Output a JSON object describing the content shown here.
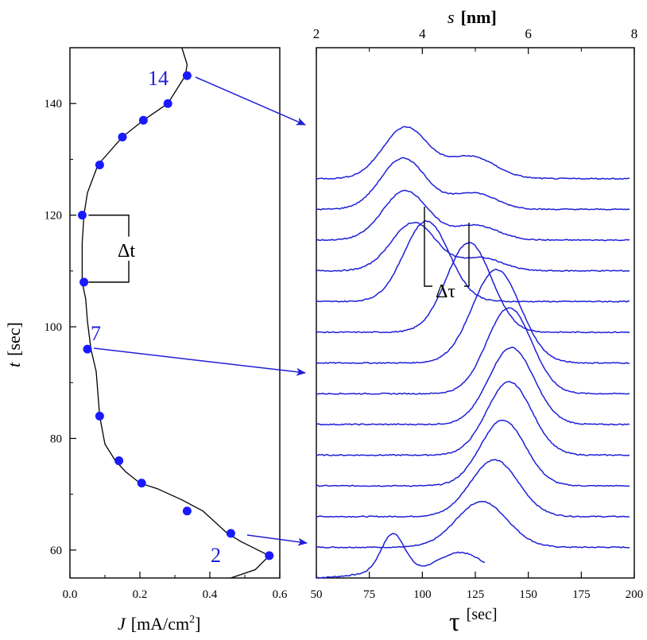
{
  "chart_data": [
    {
      "type": "scatter",
      "xlabel_var": "J",
      "xlabel_unit": "[mA/cm",
      "xlabel_sup": "2",
      "xlabel_close": "]",
      "ylabel_var": "t",
      "ylabel_unit": "[sec]",
      "xlim": [
        0.0,
        0.6
      ],
      "ylim": [
        55,
        150
      ],
      "xticks": [
        "0.0",
        "0.2",
        "0.4",
        "0.6"
      ],
      "xtick_values": [
        0.0,
        0.2,
        0.4,
        0.6
      ],
      "yticks": [
        "60",
        "80",
        "100",
        "120",
        "140"
      ],
      "ytick_values": [
        60,
        80,
        100,
        120,
        140
      ],
      "line": {
        "x": [
          0.57,
          0.49,
          0.45,
          0.38,
          0.32,
          0.25,
          0.2,
          0.16,
          0.13,
          0.1,
          0.085,
          0.08,
          0.075,
          0.06,
          0.05,
          0.045,
          0.035,
          0.035,
          0.04,
          0.05,
          0.08,
          0.15,
          0.21,
          0.28,
          0.33,
          0.335,
          0.33,
          0.32
        ],
        "y": [
          59,
          61.5,
          63,
          67,
          69,
          71,
          72,
          74,
          76,
          79,
          84,
          88,
          92,
          96,
          101,
          105,
          108,
          115,
          120,
          124,
          129,
          134,
          137,
          140,
          145,
          147,
          148,
          150
        ]
      },
      "line_tail": {
        "x": [
          0.57,
          0.53,
          0.46
        ],
        "y": [
          59,
          56.5,
          55
        ]
      },
      "points": {
        "x": [
          0.57,
          0.46,
          0.335,
          0.205,
          0.14,
          0.085,
          0.05,
          0.04,
          0.035,
          0.085,
          0.15,
          0.21,
          0.28,
          0.335
        ],
        "y": [
          59,
          63,
          67,
          72,
          76,
          84,
          96,
          108,
          120,
          129,
          134,
          137,
          140,
          145
        ]
      },
      "annotations": {
        "label_2": "2",
        "label_7": "7",
        "label_14": "14",
        "dt_label": "Δt",
        "dt_bracket_t": [
          108,
          120
        ]
      }
    },
    {
      "type": "line",
      "xlabel": "τ",
      "xlabel_unit": "[sec]",
      "top_label_var": "s",
      "top_label_unit": "[nm]",
      "xlim": [
        50,
        200
      ],
      "xticks": [
        "50",
        "75",
        "100",
        "125",
        "150",
        "175",
        "200"
      ],
      "xtick_values": [
        50,
        75,
        100,
        125,
        150,
        175,
        200
      ],
      "top_ticks": [
        "2",
        "4",
        "6",
        "8"
      ],
      "top_tick_tau": [
        50,
        100,
        150,
        200
      ],
      "top_minor_tau": [
        75,
        125,
        175
      ],
      "offset_step": 0.84,
      "y_range": [
        0,
        14.5
      ],
      "series": [
        {
          "base": 0.15,
          "peaks": [
            {
              "c": 86,
              "a": 1.1,
              "w": 8
            },
            {
              "c": 118,
              "a": 0.55,
              "w": 15
            }
          ],
          "end": 0.15,
          "end_to": 130
        },
        {
          "base": 0.0,
          "peaks": [
            {
              "c": 128,
              "a": 1.25,
              "w": 17
            }
          ],
          "end": 0.0
        },
        {
          "base": 0.0,
          "peaks": [
            {
              "c": 134,
              "a": 1.55,
              "w": 16
            }
          ],
          "end": 0.0
        },
        {
          "base": 0.0,
          "peaks": [
            {
              "c": 138,
              "a": 1.8,
              "w": 15
            }
          ],
          "end": 0.0
        },
        {
          "base": 0.0,
          "peaks": [
            {
              "c": 141,
              "a": 2.0,
              "w": 15
            }
          ],
          "end": 0.0
        },
        {
          "base": 0.0,
          "peaks": [
            {
              "c": 142,
              "a": 2.1,
              "w": 15
            }
          ],
          "end": 0.0
        },
        {
          "base": 0.0,
          "peaks": [
            {
              "c": 141,
              "a": 2.35,
              "w": 15
            }
          ],
          "end": 0.0
        },
        {
          "base": 0.0,
          "peaks": [
            {
              "c": 135,
              "a": 2.55,
              "w": 16
            }
          ],
          "end": 0.0
        },
        {
          "base": 0.0,
          "peaks": [
            {
              "c": 122,
              "a": 2.45,
              "w": 15
            }
          ],
          "end": 0.0
        },
        {
          "base": 0.0,
          "peaks": [
            {
              "c": 102,
              "a": 2.2,
              "w": 15
            }
          ],
          "end": 0.0
        },
        {
          "base": 0.0,
          "peaks": [
            {
              "c": 96,
              "a": 1.32,
              "w": 15
            },
            {
              "c": 128,
              "a": 0.35,
              "w": 14
            }
          ],
          "end": 0.0
        },
        {
          "base": 0.0,
          "peaks": [
            {
              "c": 92,
              "a": 1.35,
              "w": 15
            },
            {
              "c": 125,
              "a": 0.4,
              "w": 15
            }
          ],
          "end": 0.0
        },
        {
          "base": 0.0,
          "peaks": [
            {
              "c": 91,
              "a": 1.4,
              "w": 15
            },
            {
              "c": 124,
              "a": 0.45,
              "w": 15
            }
          ],
          "end": 0.0
        },
        {
          "base": 0.0,
          "peaks": [
            {
              "c": 92,
              "a": 1.4,
              "w": 15
            },
            {
              "c": 123,
              "a": 0.6,
              "w": 16
            }
          ],
          "end": 0.0
        }
      ],
      "annotations": {
        "dtau_label": "Δτ",
        "dtau_x": [
          101,
          122
        ]
      }
    }
  ],
  "colors": {
    "series": "#1f1fd6",
    "marker": "#1a1aff",
    "axis": "#000000",
    "bg": "#ffffff"
  }
}
